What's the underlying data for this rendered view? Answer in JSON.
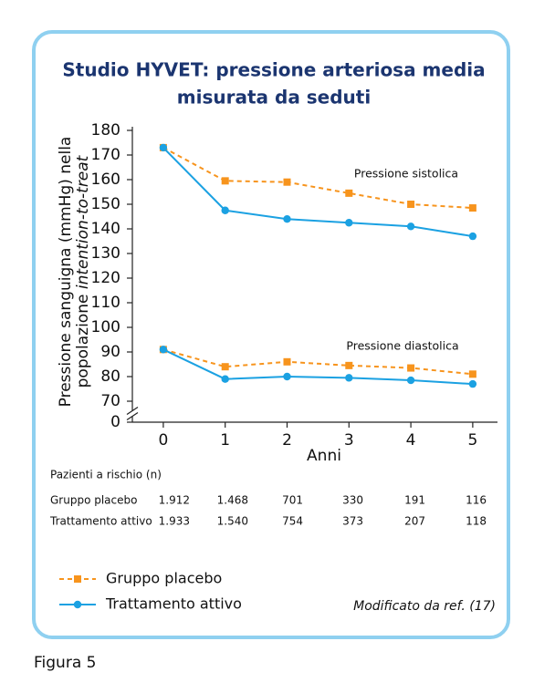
{
  "chart_data": {
    "type": "line",
    "title": [
      "Studio HYVET: pressione arteriosa media",
      "misurata da seduti"
    ],
    "y_label": [
      "Pressione sanguigna (mmHg) nella",
      "popolazione",
      "intention-to-treat"
    ],
    "x_label": "Anni",
    "x": [
      0,
      1,
      2,
      3,
      4,
      5
    ],
    "xlim": [
      -0.5,
      5.4
    ],
    "xticks": [
      0,
      1,
      2,
      3,
      4,
      5
    ],
    "ylim": [
      0,
      180
    ],
    "axis_break": [
      0,
      70
    ],
    "yticks": [
      0,
      70,
      80,
      90,
      100,
      110,
      120,
      130,
      140,
      150,
      160,
      170,
      180
    ],
    "annotations": [
      "Pressione sistolica",
      "Pressione diastolica"
    ],
    "series": [
      {
        "name": "Gruppo placebo",
        "color": "#f7941d",
        "line_style": "dashed",
        "marker": "square",
        "systolic": [
          173,
          159.5,
          159,
          154.5,
          150,
          148.5
        ],
        "diastolic": [
          91,
          84,
          86,
          84.5,
          83.5,
          81
        ]
      },
      {
        "name": "Trattamento attivo",
        "color": "#1ba1e2",
        "line_style": "solid",
        "marker": "circle",
        "systolic": [
          173,
          147.5,
          144,
          142.5,
          141,
          137
        ],
        "diastolic": [
          91,
          79,
          80,
          79.5,
          78.5,
          77
        ]
      }
    ]
  },
  "table": {
    "title": "Pazienti a rischio (n)",
    "rows": [
      [
        "Gruppo placebo",
        "1.912",
        "1.468",
        "701",
        "330",
        "191",
        "116"
      ],
      [
        "Trattamento attivo",
        "1.933",
        "1.540",
        "754",
        "373",
        "207",
        "118"
      ]
    ]
  },
  "source": "Modificato da ref. (17)",
  "figure_caption": "Figura 5"
}
